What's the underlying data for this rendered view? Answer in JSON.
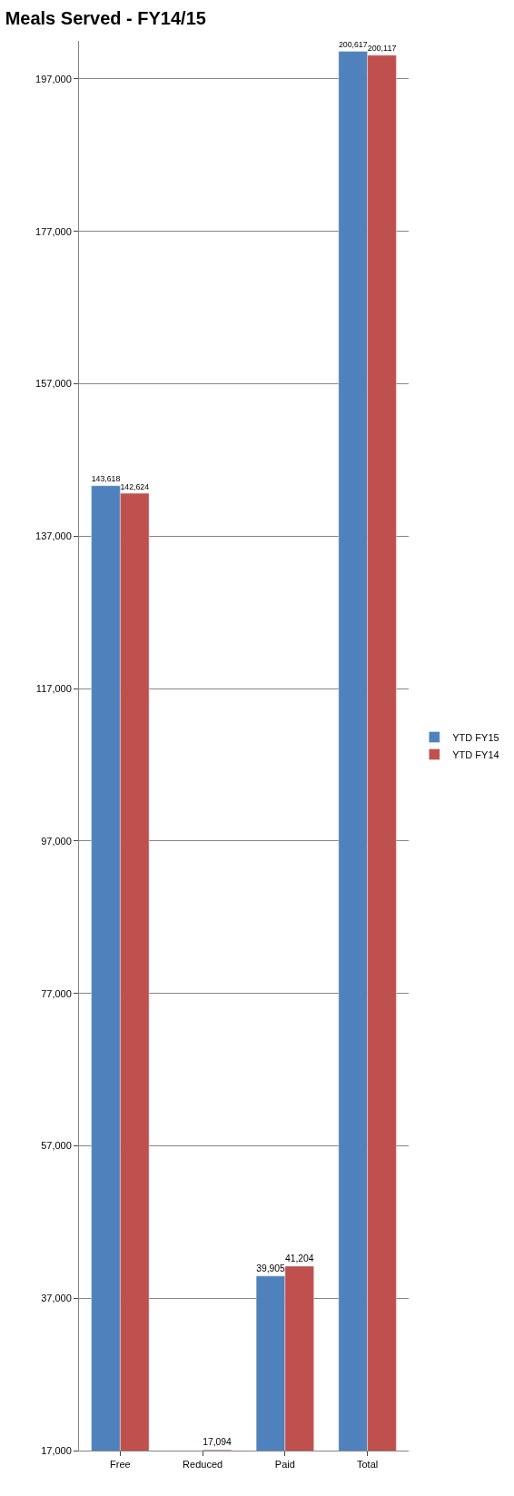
{
  "chart_data": {
    "type": "bar",
    "title": "Meals Served - FY14/15",
    "categories": [
      "Free",
      "Reduced",
      "Paid",
      "Total"
    ],
    "series": [
      {
        "name": "YTD FY15",
        "color": "#4f81bd",
        "values": [
          143618,
          null,
          39905,
          200617
        ],
        "value_labels": [
          "143,618",
          null,
          "39,905",
          "200,617"
        ]
      },
      {
        "name": "YTD FY14",
        "color": "#c0504d",
        "values": [
          142624,
          17094,
          41204,
          200117
        ],
        "value_labels": [
          "142,624",
          "17,094",
          "41,204",
          "200,117"
        ]
      }
    ],
    "ylim": [
      17000,
      202000
    ],
    "yticks": [
      {
        "value": 17000,
        "label": "17,000"
      },
      {
        "value": 37000,
        "label": "37,000"
      },
      {
        "value": 57000,
        "label": "57,000"
      },
      {
        "value": 77000,
        "label": "77,000"
      },
      {
        "value": 97000,
        "label": "97,000"
      },
      {
        "value": 117000,
        "label": "117,000"
      },
      {
        "value": 137000,
        "label": "137,000"
      },
      {
        "value": 157000,
        "label": "157,000"
      },
      {
        "value": 177000,
        "label": "177,000"
      },
      {
        "value": 197000,
        "label": "197,000"
      }
    ],
    "grid": "y",
    "legend": "right"
  }
}
